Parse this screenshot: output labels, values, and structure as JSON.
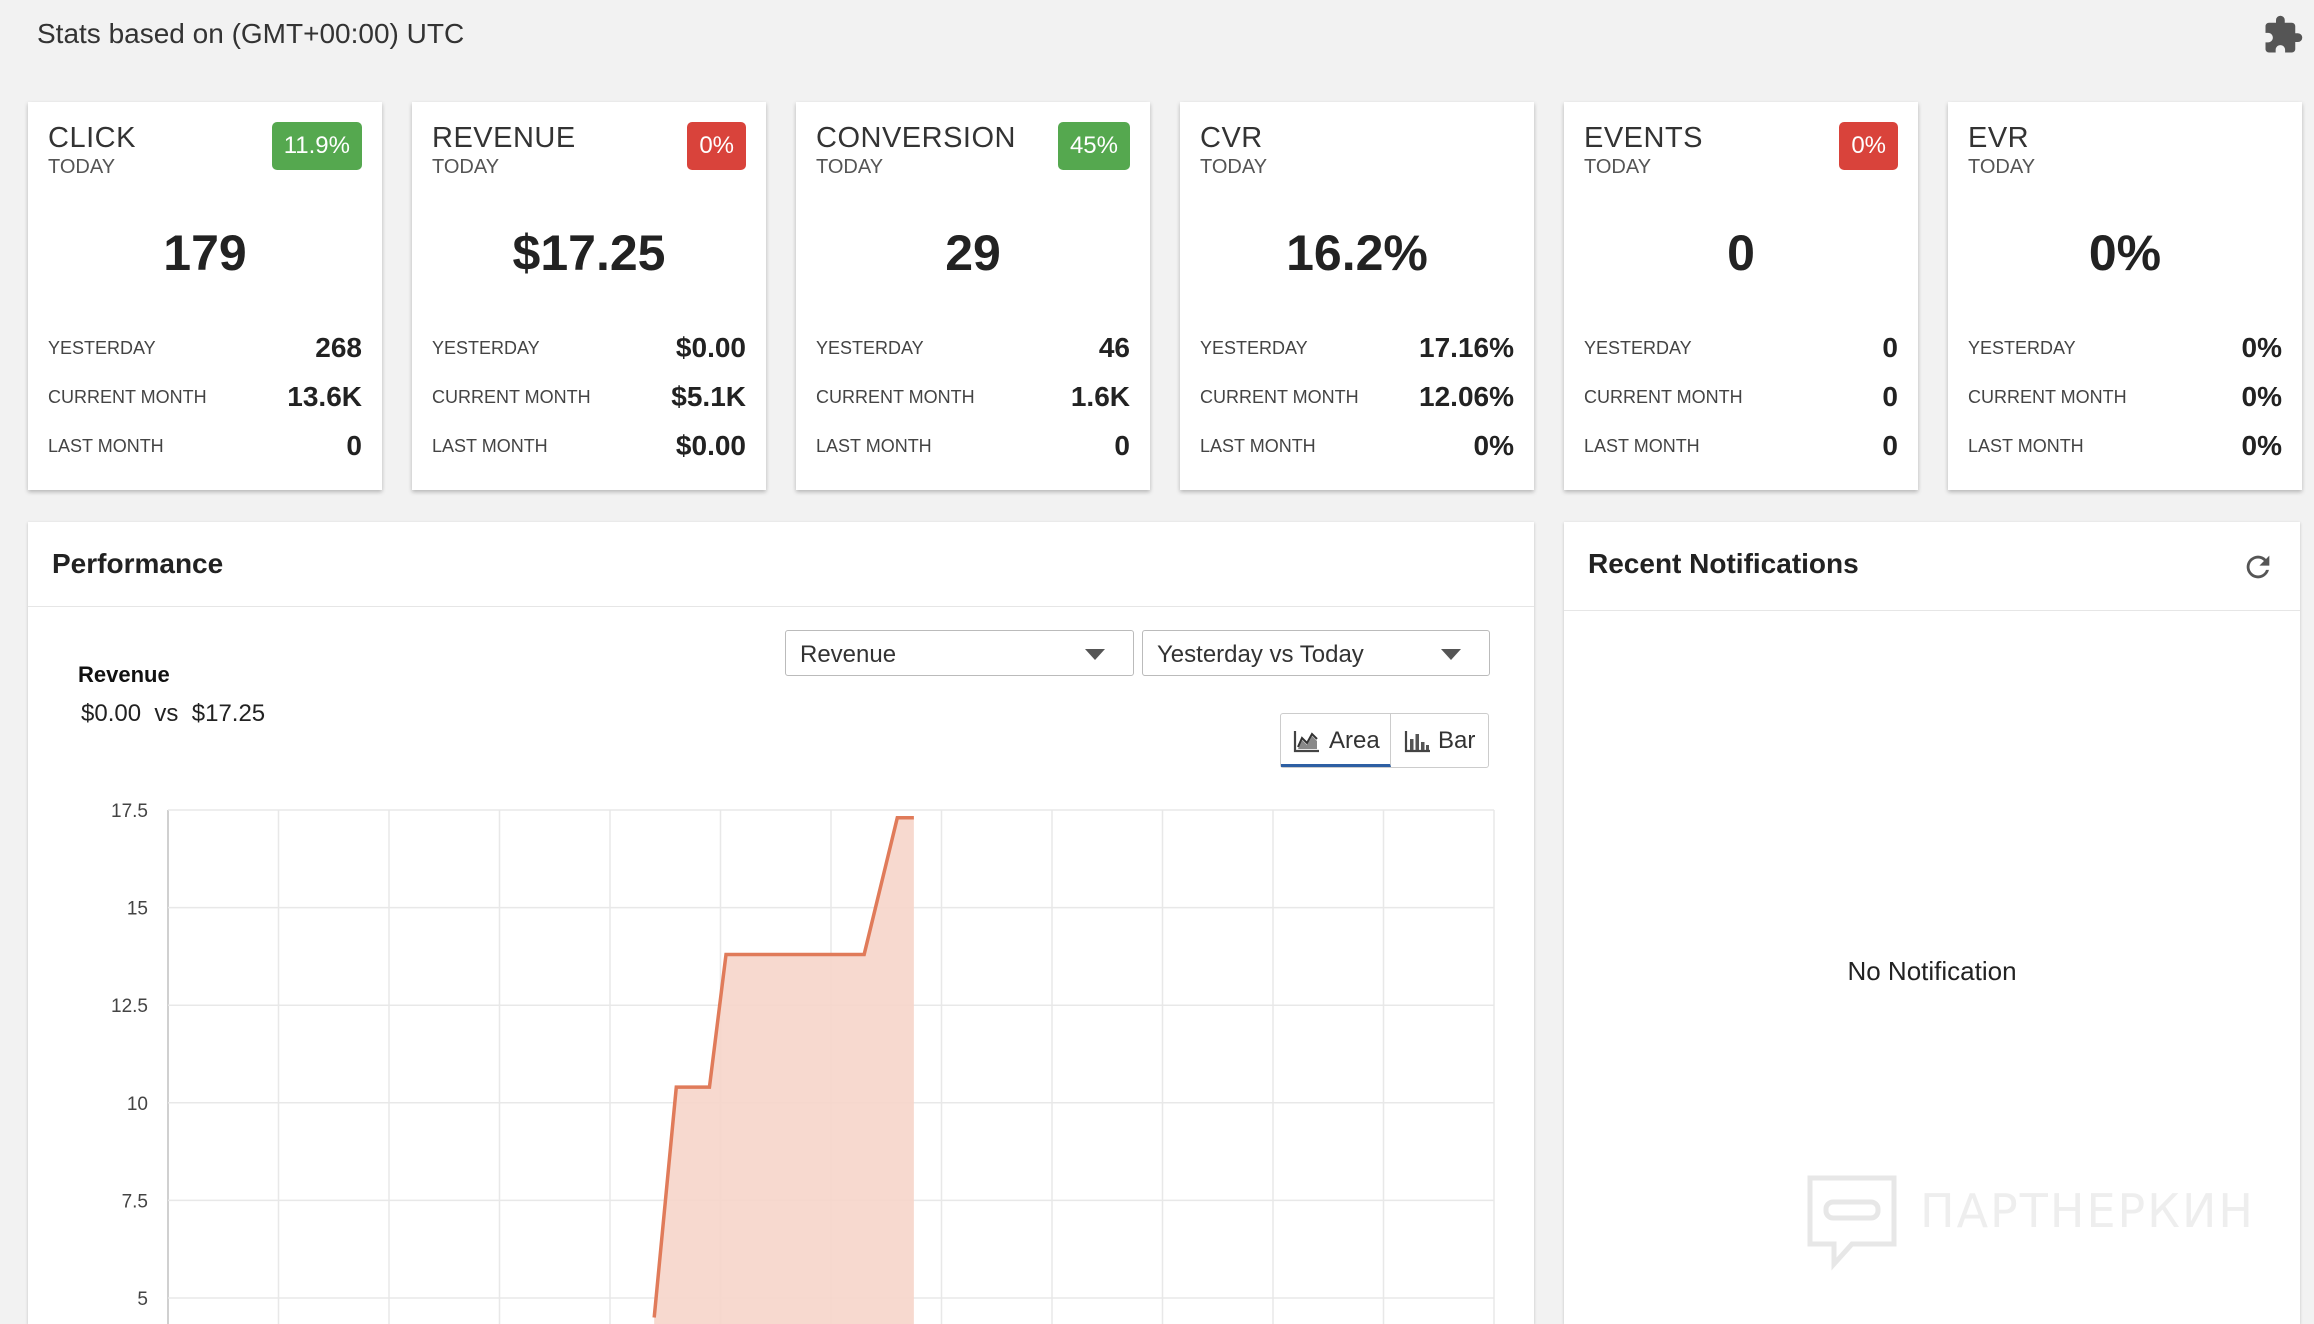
{
  "header": {
    "title": "Stats based on (GMT+00:00) UTC",
    "plugin_icon": "puzzle-icon"
  },
  "cards": [
    {
      "name": "CLICK",
      "period": "TODAY",
      "badge": "11.9%",
      "badge_color": "#55a84f",
      "value": "179",
      "rows": [
        {
          "label": "YESTERDAY",
          "value": "268"
        },
        {
          "label": "CURRENT MONTH",
          "value": "13.6K"
        },
        {
          "label": "LAST MONTH",
          "value": "0"
        }
      ]
    },
    {
      "name": "REVENUE",
      "period": "TODAY",
      "badge": "0%",
      "badge_color": "#d9433b",
      "value": "$17.25",
      "rows": [
        {
          "label": "YESTERDAY",
          "value": "$0.00"
        },
        {
          "label": "CURRENT MONTH",
          "value": "$5.1K"
        },
        {
          "label": "LAST MONTH",
          "value": "$0.00"
        }
      ]
    },
    {
      "name": "CONVERSION",
      "period": "TODAY",
      "badge": "45%",
      "badge_color": "#55a84f",
      "value": "29",
      "rows": [
        {
          "label": "YESTERDAY",
          "value": "46"
        },
        {
          "label": "CURRENT MONTH",
          "value": "1.6K"
        },
        {
          "label": "LAST MONTH",
          "value": "0"
        }
      ]
    },
    {
      "name": "CVR",
      "period": "TODAY",
      "badge": "",
      "badge_color": "",
      "value": "16.2%",
      "rows": [
        {
          "label": "YESTERDAY",
          "value": "17.16%"
        },
        {
          "label": "CURRENT MONTH",
          "value": "12.06%"
        },
        {
          "label": "LAST MONTH",
          "value": "0%"
        }
      ]
    },
    {
      "name": "EVENTS",
      "period": "TODAY",
      "badge": "0%",
      "badge_color": "#d9433b",
      "value": "0",
      "rows": [
        {
          "label": "YESTERDAY",
          "value": "0"
        },
        {
          "label": "CURRENT MONTH",
          "value": "0"
        },
        {
          "label": "LAST MONTH",
          "value": "0"
        }
      ]
    },
    {
      "name": "EVR",
      "period": "TODAY",
      "badge": "",
      "badge_color": "",
      "value": "0%",
      "rows": [
        {
          "label": "YESTERDAY",
          "value": "0%"
        },
        {
          "label": "CURRENT MONTH",
          "value": "0%"
        },
        {
          "label": "LAST MONTH",
          "value": "0%"
        }
      ]
    }
  ],
  "performance": {
    "title": "Performance",
    "metric_select": "Revenue",
    "range_select": "Yesterday vs Today",
    "metric_name": "Revenue",
    "compare_yesterday": "$0.00",
    "compare_vs": "vs",
    "compare_today": "$17.25",
    "toggle": {
      "area": "Area",
      "bar": "Bar",
      "active": "area"
    }
  },
  "chart_data": {
    "type": "area",
    "title": "",
    "xlabel": "",
    "ylabel": "",
    "y_ticks": [
      "17.5",
      "15",
      "12.5",
      "10",
      "7.5",
      "5"
    ],
    "ylim": [
      4.5,
      17.5
    ],
    "x_slots": 12,
    "grid": true,
    "fill_color": "#f6d5ca",
    "line_color": "#e07b5a",
    "series": [
      {
        "x": [
          4.4,
          4.6,
          4.9,
          5.05,
          6.3,
          6.6,
          6.75
        ],
        "y": [
          4.5,
          10.4,
          10.4,
          13.8,
          13.8,
          17.3,
          17.3
        ]
      }
    ]
  },
  "notifications": {
    "title": "Recent Notifications",
    "empty_text": "No Notification",
    "refresh_icon": "refresh-icon"
  },
  "watermark": {
    "text": "ПАРТНЕРКИН"
  }
}
